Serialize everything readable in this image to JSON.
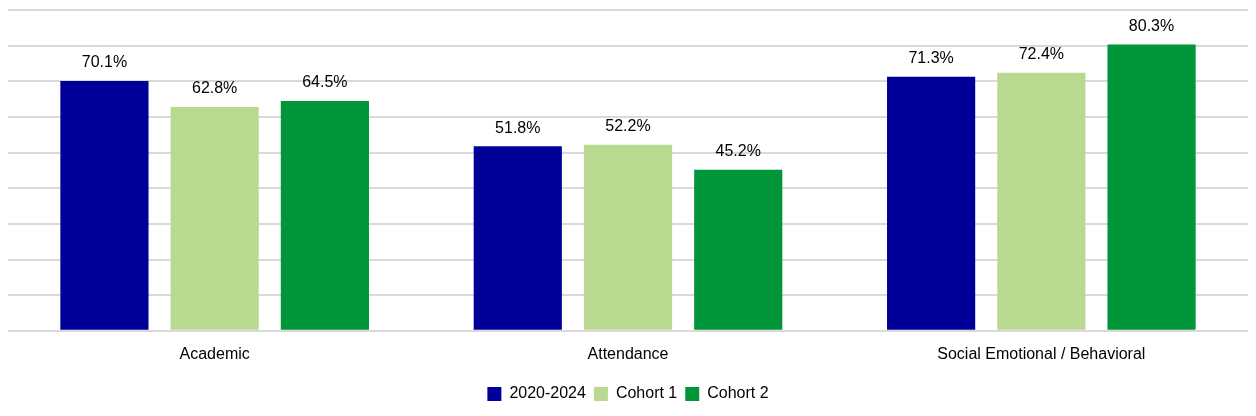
{
  "chart_data": {
    "type": "bar",
    "categories": [
      "Academic",
      "Attendance",
      "Social Emotional / Behavioral"
    ],
    "series": [
      {
        "name": "2020-2024",
        "color": "#000099",
        "values": [
          70.1,
          51.8,
          71.3
        ],
        "value_labels": [
          "70.1%",
          "51.8%",
          "71.3%"
        ]
      },
      {
        "name": "Cohort 1",
        "color": "#b8d98f",
        "values": [
          62.8,
          52.2,
          72.4
        ],
        "value_labels": [
          "62.8%",
          "52.2%",
          "72.4%"
        ]
      },
      {
        "name": "Cohort 2",
        "color": "#009639",
        "values": [
          64.5,
          45.2,
          80.3
        ],
        "value_labels": [
          "64.5%",
          "45.2%",
          "80.3%"
        ]
      }
    ],
    "ylim": [
      0,
      90
    ],
    "yticks": [
      {
        "value": 0,
        "label": null
      },
      {
        "value": 10,
        "label": null
      },
      {
        "value": 20,
        "label": null
      },
      {
        "value": 30,
        "label": null
      },
      {
        "value": 40,
        "label": null
      },
      {
        "value": 50,
        "label": null
      },
      {
        "value": 60,
        "label": null
      },
      {
        "value": 70,
        "label": null
      },
      {
        "value": 80,
        "label": null
      },
      {
        "value": 90,
        "label": null
      }
    ],
    "grid": "y",
    "legend": "bottom",
    "tick_labels": "x"
  }
}
